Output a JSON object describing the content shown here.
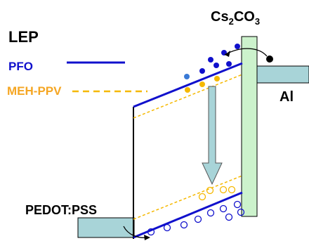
{
  "labels": {
    "lep": "LEP",
    "pfo": "PFO",
    "meh_ppv": "MEH-PPV",
    "cathode_interlayer_base": "Cs",
    "cathode_interlayer_sub": "2",
    "cathode_interlayer_mid": "CO",
    "cathode_interlayer_sub2": "3",
    "cathode": "Al",
    "anode": "PEDOT:PSS"
  },
  "colors": {
    "pfo_line": "#1010cc",
    "meh_ppv_line": "#f5b800",
    "meh_ppv_text": "#f5a623",
    "pfo_text": "#1010cc",
    "electron_fill": "#1010cc",
    "electron_light": "#3a7ad6",
    "hole_outline": "#1010cc",
    "meh_electron_fill": "#f5b800",
    "meh_hole_outline": "#f5b800",
    "cs2co3_layer": "#ccf2cc",
    "electrode_fill": "#a8d4d8",
    "arrow_fill": "#a8d4d8",
    "black": "#000000"
  },
  "icons": {
    "emission_arrow": "down-arrow-icon",
    "injection_arrow": "curved-arrow-icon"
  }
}
